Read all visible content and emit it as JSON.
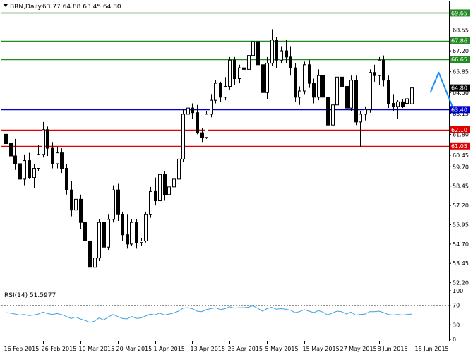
{
  "symbol_header": {
    "symbol": "BRN,Daily",
    "ohlc": "63.77 64.88 63.45 64.80"
  },
  "colors": {
    "background": "#ffffff",
    "candle_up_fill": "#ffffff",
    "candle_down_fill": "#000000",
    "candle_outline": "#000000",
    "resistance": "#228B22",
    "support": "#e00000",
    "pivot": "#0000cc",
    "forecast_arrow": "#1e90ff",
    "rsi_line": "#3fa0dc",
    "rsi_levels": "#909090"
  },
  "chart_data": [
    {
      "type": "candlestick",
      "title": "BRN,Daily",
      "ylim": [
        52.0,
        70.4
      ],
      "y_ticks": [
        "69.65",
        "68.55",
        "67.86",
        "67.20",
        "66.65",
        "65.85",
        "64.80",
        "64.50",
        "63.40",
        "63.15",
        "62.10",
        "61.80",
        "61.05",
        "60.45",
        "59.70",
        "58.45",
        "57.20",
        "55.95",
        "54.70",
        "53.45",
        "52.20"
      ],
      "x_ticks": [
        "16 Feb 2015",
        "26 Feb 2015",
        "10 Mar 2015",
        "20 Mar 2015",
        "1 Apr 2015",
        "13 Apr 2015",
        "23 Apr 2015",
        "5 May 2015",
        "15 May 2015",
        "27 May 2015",
        "8 Jun 2015",
        "18 Jun 2015"
      ],
      "x_tick_index": [
        0,
        8,
        16,
        24,
        32,
        40,
        48,
        56,
        64,
        72,
        80,
        88
      ],
      "current_price": "64.80",
      "ohlc": [
        [
          61.8,
          62.7,
          60.6,
          61.2
        ],
        [
          61.2,
          62.0,
          60.0,
          60.4
        ],
        [
          60.4,
          61.5,
          59.5,
          59.9
        ],
        [
          59.9,
          60.6,
          58.6,
          58.9
        ],
        [
          58.9,
          60.5,
          58.5,
          60.1
        ],
        [
          60.1,
          60.6,
          58.9,
          59.0
        ],
        [
          59.0,
          59.9,
          58.3,
          59.6
        ],
        [
          59.6,
          61.1,
          59.4,
          60.5
        ],
        [
          60.5,
          62.6,
          60.3,
          62.1
        ],
        [
          62.1,
          62.3,
          60.4,
          60.9
        ],
        [
          60.9,
          61.3,
          59.6,
          59.9
        ],
        [
          59.9,
          61.0,
          59.6,
          60.6
        ],
        [
          60.6,
          60.9,
          59.3,
          59.6
        ],
        [
          59.6,
          59.9,
          57.9,
          58.2
        ],
        [
          58.2,
          58.8,
          56.5,
          56.9
        ],
        [
          56.9,
          58.0,
          56.7,
          57.6
        ],
        [
          57.6,
          57.9,
          55.7,
          56.1
        ],
        [
          56.1,
          56.4,
          54.6,
          54.9
        ],
        [
          54.9,
          55.1,
          52.8,
          53.2
        ],
        [
          53.2,
          54.1,
          52.8,
          53.8
        ],
        [
          53.8,
          56.3,
          53.6,
          56.1
        ],
        [
          56.1,
          56.2,
          54.2,
          54.5
        ],
        [
          54.5,
          56.6,
          54.3,
          56.3
        ],
        [
          56.3,
          58.5,
          56.1,
          58.2
        ],
        [
          58.2,
          58.6,
          56.2,
          56.6
        ],
        [
          56.6,
          56.8,
          54.9,
          55.3
        ],
        [
          55.3,
          56.6,
          54.4,
          54.7
        ],
        [
          54.7,
          56.3,
          54.6,
          56.1
        ],
        [
          56.1,
          56.3,
          54.4,
          54.8
        ],
        [
          54.8,
          55.1,
          54.6,
          54.9
        ],
        [
          54.9,
          56.8,
          54.8,
          56.6
        ],
        [
          56.6,
          58.4,
          56.4,
          58.1
        ],
        [
          58.1,
          59.0,
          57.2,
          57.5
        ],
        [
          57.5,
          59.6,
          57.4,
          59.2
        ],
        [
          59.2,
          59.4,
          57.5,
          57.9
        ],
        [
          57.9,
          58.7,
          57.7,
          58.4
        ],
        [
          58.4,
          59.2,
          58.2,
          58.9
        ],
        [
          58.9,
          60.4,
          58.8,
          60.2
        ],
        [
          60.2,
          63.4,
          60.0,
          63.1
        ],
        [
          63.1,
          64.4,
          62.9,
          63.5
        ],
        [
          63.5,
          63.8,
          62.8,
          63.2
        ],
        [
          63.2,
          63.7,
          61.8,
          61.9
        ],
        [
          61.9,
          62.2,
          61.3,
          61.6
        ],
        [
          61.6,
          63.3,
          61.5,
          63.1
        ],
        [
          63.1,
          64.4,
          62.9,
          64.0
        ],
        [
          64.0,
          65.3,
          63.8,
          65.1
        ],
        [
          65.1,
          65.2,
          63.9,
          64.2
        ],
        [
          64.2,
          65.5,
          64.0,
          64.9
        ],
        [
          64.9,
          66.8,
          64.7,
          66.6
        ],
        [
          66.6,
          66.8,
          65.0,
          65.4
        ],
        [
          65.4,
          66.3,
          65.1,
          66.1
        ],
        [
          66.1,
          66.4,
          65.6,
          66.0
        ],
        [
          66.0,
          67.1,
          65.8,
          66.9
        ],
        [
          66.9,
          69.8,
          66.7,
          67.8
        ],
        [
          67.8,
          68.5,
          66.0,
          66.3
        ],
        [
          66.3,
          66.8,
          64.1,
          64.5
        ],
        [
          64.5,
          66.8,
          64.1,
          66.4
        ],
        [
          66.4,
          68.6,
          66.2,
          67.9
        ],
        [
          67.9,
          68.1,
          66.1,
          66.6
        ],
        [
          66.6,
          67.5,
          66.4,
          67.2
        ],
        [
          67.2,
          67.9,
          66.4,
          66.8
        ],
        [
          66.8,
          67.5,
          65.6,
          66.1
        ],
        [
          66.1,
          66.4,
          63.9,
          64.2
        ],
        [
          64.2,
          64.9,
          63.7,
          64.6
        ],
        [
          64.6,
          66.5,
          64.4,
          66.3
        ],
        [
          66.3,
          66.6,
          64.8,
          65.1
        ],
        [
          65.1,
          65.4,
          63.8,
          64.2
        ],
        [
          64.2,
          66.0,
          64.0,
          65.6
        ],
        [
          65.6,
          65.9,
          63.9,
          64.2
        ],
        [
          64.2,
          64.4,
          62.1,
          62.4
        ],
        [
          62.4,
          63.9,
          61.3,
          63.7
        ],
        [
          63.7,
          65.8,
          63.5,
          65.5
        ],
        [
          65.5,
          65.9,
          64.6,
          64.9
        ],
        [
          64.9,
          65.4,
          63.2,
          63.5
        ],
        [
          63.5,
          65.6,
          63.3,
          65.3
        ],
        [
          65.3,
          65.6,
          62.4,
          62.6
        ],
        [
          62.6,
          63.3,
          61.0,
          63.1
        ],
        [
          63.1,
          63.6,
          62.7,
          63.4
        ],
        [
          63.4,
          66.0,
          63.2,
          65.8
        ],
        [
          65.8,
          66.3,
          65.2,
          65.6
        ],
        [
          65.6,
          66.8,
          65.0,
          66.6
        ],
        [
          66.6,
          66.9,
          64.9,
          65.3
        ],
        [
          65.3,
          65.6,
          63.5,
          63.8
        ],
        [
          63.8,
          64.4,
          63.3,
          63.6
        ],
        [
          63.6,
          64.0,
          62.8,
          63.9
        ],
        [
          63.9,
          64.1,
          63.5,
          63.6
        ],
        [
          63.8,
          65.3,
          62.7,
          64.1
        ],
        [
          63.77,
          64.88,
          63.45,
          64.8
        ]
      ],
      "levels": [
        {
          "value": 69.65,
          "label": "69.65",
          "kind": "resistance"
        },
        {
          "value": 67.86,
          "label": "67.86",
          "kind": "resistance"
        },
        {
          "value": 66.65,
          "label": "66.65",
          "kind": "resistance"
        },
        {
          "value": 63.4,
          "label": "63.40",
          "kind": "pivot"
        },
        {
          "value": 62.1,
          "label": "62.10",
          "kind": "support"
        },
        {
          "value": 61.05,
          "label": "61.05",
          "kind": "support"
        }
      ],
      "forecast_arrow": [
        {
          "i": 91.0,
          "p": 64.5
        },
        {
          "i": 92.8,
          "p": 65.8
        },
        {
          "i": 96.4,
          "p": 63.1
        }
      ]
    },
    {
      "type": "line",
      "title": "RSI(14) 51.5977",
      "ylim": [
        0,
        100
      ],
      "y_ticks": [
        "100",
        "70",
        "30",
        "0"
      ],
      "levels": [
        70,
        30
      ],
      "values": [
        55,
        54,
        52,
        50,
        51,
        49,
        50,
        52,
        56,
        53,
        51,
        53,
        51,
        47,
        43,
        46,
        42,
        39,
        35,
        37,
        44,
        40,
        46,
        51,
        47,
        43,
        42,
        47,
        43,
        44,
        48,
        52,
        50,
        54,
        50,
        52,
        54,
        58,
        64,
        65,
        63,
        58,
        57,
        61,
        63,
        65,
        61,
        63,
        67,
        64,
        65,
        65,
        66,
        69,
        64,
        58,
        63,
        66,
        62,
        63,
        62,
        60,
        55,
        57,
        61,
        58,
        55,
        59,
        56,
        50,
        54,
        58,
        57,
        52,
        56,
        50,
        51,
        52,
        57,
        57,
        58,
        55,
        51,
        50,
        51,
        50,
        51,
        52
      ]
    }
  ]
}
